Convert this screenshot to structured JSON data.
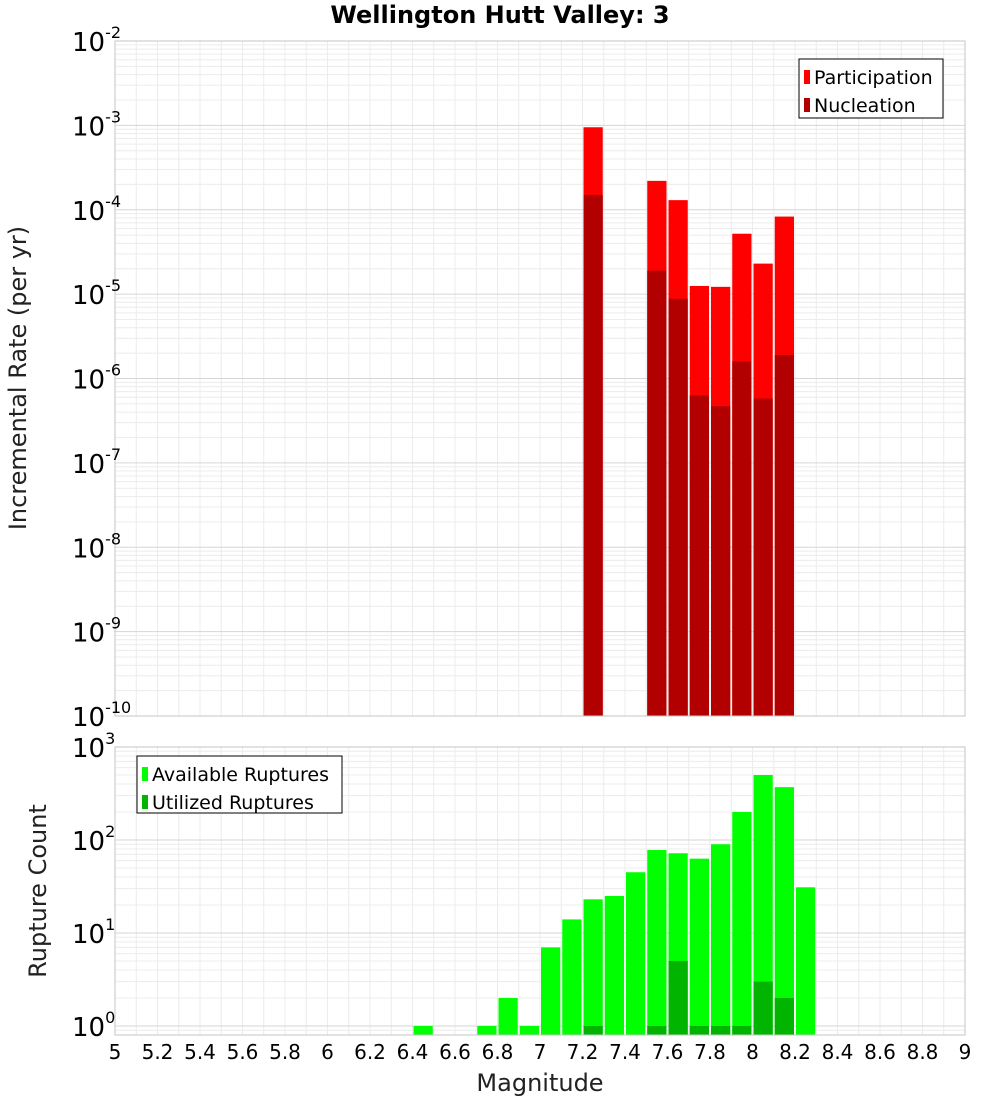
{
  "title": "Wellington Hutt Valley: 3",
  "xlabel": "Magnitude",
  "colors": {
    "participation": "#ff0000",
    "nucleation": "#b20000",
    "available": "#00ff00",
    "utilized": "#00b400"
  },
  "chart_data": [
    {
      "type": "bar",
      "title": "Wellington Hutt Valley: 3",
      "xlabel": "Magnitude",
      "ylabel": "Incremental Rate (per yr)",
      "y_scale": "log",
      "xlim": [
        5,
        9
      ],
      "ylim": [
        1e-10,
        0.01
      ],
      "grid": true,
      "legend_position": "top-right",
      "series": [
        {
          "name": "Participation",
          "color": "#ff0000",
          "points": [
            {
              "x": 7.25,
              "y": 0.00095
            },
            {
              "x": 7.55,
              "y": 0.00022
            },
            {
              "x": 7.65,
              "y": 0.00013
            },
            {
              "x": 7.75,
              "y": 1.25e-05
            },
            {
              "x": 7.85,
              "y": 1.22e-05
            },
            {
              "x": 7.95,
              "y": 5.2e-05
            },
            {
              "x": 8.05,
              "y": 2.3e-05
            },
            {
              "x": 8.15,
              "y": 8.3e-05
            }
          ]
        },
        {
          "name": "Nucleation",
          "color": "#b20000",
          "points": [
            {
              "x": 7.25,
              "y": 0.00015
            },
            {
              "x": 7.55,
              "y": 1.9e-05
            },
            {
              "x": 7.65,
              "y": 8.8e-06
            },
            {
              "x": 7.75,
              "y": 6.3e-07
            },
            {
              "x": 7.85,
              "y": 4.7e-07
            },
            {
              "x": 7.95,
              "y": 1.6e-06
            },
            {
              "x": 8.05,
              "y": 5.8e-07
            },
            {
              "x": 8.15,
              "y": 1.9e-06
            }
          ]
        }
      ]
    },
    {
      "type": "bar",
      "xlabel": "Magnitude",
      "ylabel": "Rupture Count",
      "y_scale": "log",
      "xlim": [
        5,
        9
      ],
      "ylim": [
        0.8,
        1000
      ],
      "grid": true,
      "legend_position": "top-left",
      "series": [
        {
          "name": "Available Ruptures",
          "color": "#00ff00",
          "points": [
            {
              "x": 6.45,
              "y": 1
            },
            {
              "x": 6.75,
              "y": 1
            },
            {
              "x": 6.85,
              "y": 2
            },
            {
              "x": 6.95,
              "y": 1
            },
            {
              "x": 7.05,
              "y": 7
            },
            {
              "x": 7.15,
              "y": 14
            },
            {
              "x": 7.25,
              "y": 23
            },
            {
              "x": 7.35,
              "y": 25
            },
            {
              "x": 7.45,
              "y": 45
            },
            {
              "x": 7.55,
              "y": 78
            },
            {
              "x": 7.65,
              "y": 72
            },
            {
              "x": 7.75,
              "y": 63
            },
            {
              "x": 7.85,
              "y": 90
            },
            {
              "x": 7.95,
              "y": 200
            },
            {
              "x": 8.05,
              "y": 500
            },
            {
              "x": 8.15,
              "y": 370
            },
            {
              "x": 8.25,
              "y": 31
            }
          ]
        },
        {
          "name": "Utilized Ruptures",
          "color": "#00b400",
          "points": [
            {
              "x": 7.25,
              "y": 1
            },
            {
              "x": 7.55,
              "y": 1
            },
            {
              "x": 7.65,
              "y": 5
            },
            {
              "x": 7.75,
              "y": 1
            },
            {
              "x": 7.85,
              "y": 1
            },
            {
              "x": 7.95,
              "y": 1
            },
            {
              "x": 8.05,
              "y": 3
            },
            {
              "x": 8.15,
              "y": 2
            }
          ]
        }
      ]
    }
  ]
}
